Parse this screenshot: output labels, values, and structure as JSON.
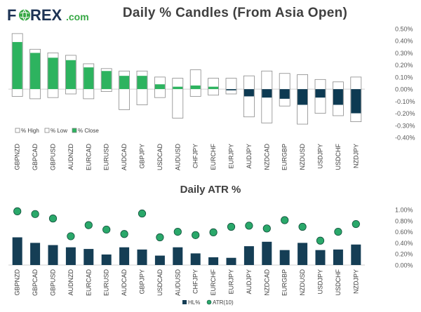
{
  "logo": {
    "text_left": "F",
    "text_right": "REX",
    "suffix": ".com",
    "navy": "#1d3354",
    "green": "#37a845"
  },
  "chart_data": [
    {
      "type": "candlestick",
      "title": "Daily % Candles (From Asia Open)",
      "categories": [
        "GBPNZD",
        "GBPCAD",
        "GBPUSD",
        "AUDNZD",
        "EURCAD",
        "EURUSD",
        "AUDCAD",
        "GBPJPY",
        "USDCAD",
        "AUDUSD",
        "CHFJPY",
        "EURCHF",
        "EURJPY",
        "AUDJPY",
        "NZDCAD",
        "EURGBP",
        "NZDUSD",
        "USDJPY",
        "USDCHF",
        "NZDJPY"
      ],
      "high": [
        0.46,
        0.33,
        0.3,
        0.28,
        0.21,
        0.17,
        0.15,
        0.15,
        0.1,
        0.09,
        0.16,
        0.09,
        0.09,
        0.11,
        0.15,
        0.13,
        0.12,
        0.08,
        0.06,
        0.1
      ],
      "low": [
        -0.06,
        -0.08,
        -0.07,
        -0.04,
        -0.08,
        -0.02,
        -0.17,
        -0.13,
        -0.07,
        -0.24,
        -0.06,
        -0.05,
        -0.04,
        -0.23,
        -0.28,
        -0.14,
        -0.29,
        -0.2,
        -0.22,
        -0.27
      ],
      "close": [
        0.39,
        0.3,
        0.26,
        0.24,
        0.18,
        0.15,
        0.11,
        0.11,
        0.04,
        0.02,
        0.03,
        0.02,
        -0.01,
        -0.06,
        -0.07,
        -0.08,
        -0.13,
        -0.07,
        -0.13,
        -0.2
      ],
      "ylim": [
        -0.4,
        0.5
      ],
      "yticks": [
        "0.50%",
        "0.40%",
        "0.30%",
        "0.20%",
        "0.10%",
        "0.00%",
        "-0.10%",
        "-0.20%",
        "-0.30%",
        "-0.40%"
      ],
      "legend": [
        "% High",
        "% Low",
        "% Close"
      ],
      "colors": {
        "up": "#2db35f",
        "down": "#0d3a52",
        "outline": "#8a8a8a"
      }
    },
    {
      "type": "bar+scatter",
      "title": "Daily ATR %",
      "categories": [
        "GBPNZD",
        "GBPCAD",
        "GBPUSD",
        "AUDNZD",
        "EURCAD",
        "EURUSD",
        "AUDCAD",
        "GBPJPY",
        "USDCAD",
        "AUDUSD",
        "CHFJPY",
        "EURCHF",
        "EURJPY",
        "AUDJPY",
        "NZDCAD",
        "EURGBP",
        "NZDUSD",
        "USDJPY",
        "USDCHF",
        "NZDJPY"
      ],
      "series": [
        {
          "name": "HL%",
          "type": "bar",
          "values": [
            0.5,
            0.4,
            0.36,
            0.32,
            0.29,
            0.19,
            0.32,
            0.28,
            0.17,
            0.32,
            0.21,
            0.14,
            0.13,
            0.34,
            0.42,
            0.27,
            0.4,
            0.27,
            0.28,
            0.37
          ]
        },
        {
          "name": "ATR(10)",
          "type": "scatter",
          "values": [
            0.97,
            0.92,
            0.84,
            0.52,
            0.72,
            0.64,
            0.56,
            0.93,
            0.5,
            0.6,
            0.54,
            0.59,
            0.69,
            0.71,
            0.66,
            0.81,
            0.69,
            0.44,
            0.6,
            0.74
          ]
        }
      ],
      "ylim": [
        0,
        1.0
      ],
      "yticks": [
        "1.00%",
        "0.80%",
        "0.60%",
        "0.40%",
        "0.20%",
        "0.00%"
      ],
      "legend": [
        "HL%",
        "ATR(10)"
      ],
      "colors": {
        "bar": "#153e55",
        "dot": "#2aa86a",
        "dot_edge": "#0f4f3a"
      }
    }
  ]
}
